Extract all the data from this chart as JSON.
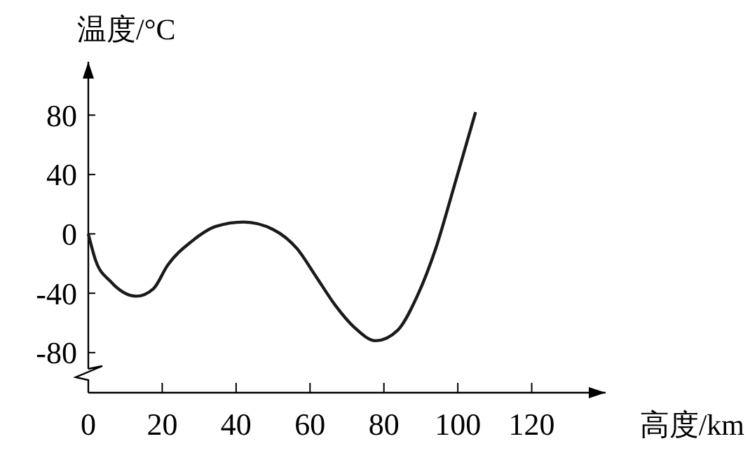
{
  "chart_data": {
    "type": "line",
    "xlabel": "高度/km",
    "ylabel": "温度/°C",
    "x": [
      0,
      2,
      6,
      13,
      17.6,
      21.5,
      28,
      34.5,
      42,
      50,
      56.5,
      61.7,
      66.8,
      72,
      77.8,
      83.7,
      89,
      94,
      99,
      104.8
    ],
    "series": [
      {
        "color": "#1a1a1a",
        "values": [
          0,
          -18,
          -32,
          -42,
          -37,
          -21,
          -5,
          5,
          8,
          3,
          -10,
          -29,
          -48,
          -63,
          -72,
          -65,
          -42,
          -10,
          32,
          82
        ]
      }
    ],
    "xlim": [
      0,
      140
    ],
    "xticks": [
      0,
      20,
      40,
      60,
      80,
      100,
      120
    ],
    "ylim": [
      -107,
      116
    ],
    "yticks": [
      -80,
      -40,
      0,
      40,
      80
    ],
    "grid": false,
    "marker": "none",
    "line_style": "solid"
  }
}
